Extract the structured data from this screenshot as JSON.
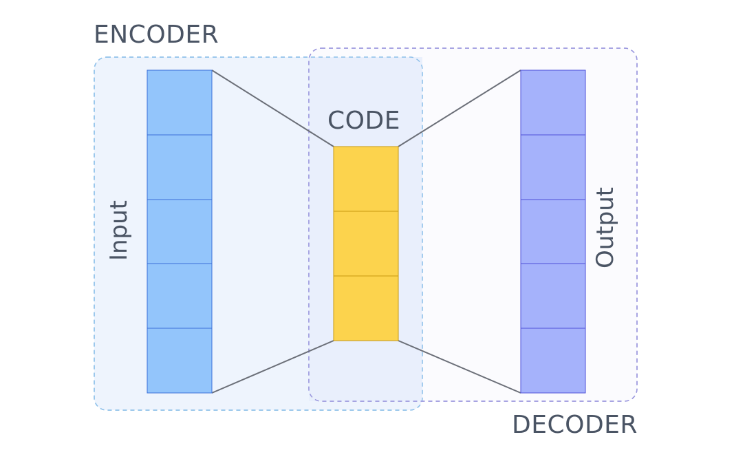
{
  "labels": {
    "encoder": "ENCODER",
    "decoder": "DECODER",
    "code": "CODE",
    "input": "Input",
    "output": "Output"
  },
  "layers": {
    "input_cells": 5,
    "code_cells": 3,
    "output_cells": 5
  },
  "colors": {
    "encoder_region_fill": "#eef4fd",
    "encoder_region_border": "#8fc1ea",
    "decoder_region_fill": "#f8f8fe",
    "decoder_region_border": "#9b98de",
    "overlap_fill": "#e6edfb",
    "input_fill": "#93c5fb",
    "input_stroke": "#3b6fd8",
    "code_fill": "#fcd34d",
    "code_stroke": "#c89a10",
    "output_fill": "#a5b2fb",
    "output_stroke": "#4e50d8",
    "connector": "#6b6f78",
    "text": "#4a5464"
  }
}
